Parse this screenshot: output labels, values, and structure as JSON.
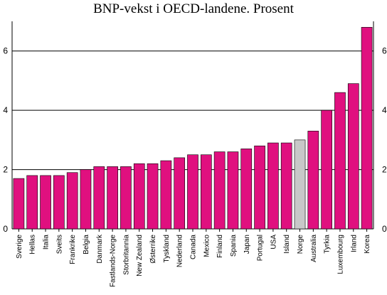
{
  "chart_data": {
    "type": "bar",
    "title": "BNP-vekst i OECD-landene. Prosent",
    "xlabel": "",
    "ylabel": "",
    "ylim": [
      0,
      7
    ],
    "yticks": [
      0,
      2,
      4,
      6
    ],
    "grid": true,
    "categories": [
      "Sverige",
      "Hellas",
      "Italia",
      "Sveits",
      "Frankrike",
      "Belgia",
      "Danmark",
      "Fastlands-Norge",
      "Storbritannia",
      "New Zealand",
      "Østerrike",
      "Tyskland",
      "Nederland",
      "Canada",
      "Mexico",
      "Finland",
      "Spania",
      "Japan",
      "Portugal",
      "USA",
      "Island",
      "Norge",
      "Australia",
      "Tyrkia",
      "Luxembourg",
      "Irland",
      "Korea"
    ],
    "values": [
      1.7,
      1.8,
      1.8,
      1.8,
      1.9,
      2.0,
      2.1,
      2.1,
      2.1,
      2.2,
      2.2,
      2.3,
      2.4,
      2.5,
      2.5,
      2.6,
      2.6,
      2.7,
      2.8,
      2.9,
      2.9,
      3.0,
      3.3,
      4.0,
      4.6,
      4.9,
      6.8
    ],
    "highlight": "Norge",
    "colors": {
      "bar": "#E0107F",
      "highlight": "#C8C8C8",
      "grid": "#000000"
    }
  }
}
